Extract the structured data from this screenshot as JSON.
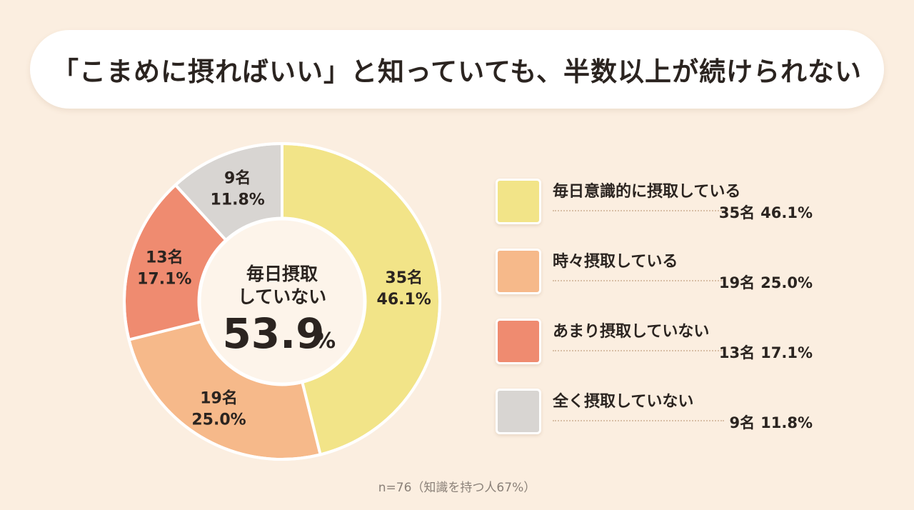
{
  "title": "「こまめに摂ればいい」と知っていても、半数以上が続けられない",
  "center": {
    "line1": "毎日摂取",
    "line2": "していない",
    "value": "53.9",
    "unit": "%"
  },
  "footnote": "n=76（知識を持つ人67%）",
  "chart_data": {
    "type": "pie",
    "donut": true,
    "categories": [
      "毎日意識的に摂取している",
      "時々摂取している",
      "あまり摂取していない",
      "全く摂取していない"
    ],
    "counts": [
      35,
      19,
      13,
      9
    ],
    "values": [
      46.1,
      25.0,
      17.1,
      11.8
    ],
    "count_labels": [
      "35名",
      "19名",
      "13名",
      "9名"
    ],
    "percent_labels": [
      "46.1%",
      "25.0%",
      "17.1%",
      "11.8%"
    ],
    "colors": [
      "#f2e488",
      "#f6b98a",
      "#ef8b70",
      "#d8d5d2"
    ],
    "legend_position": "right"
  },
  "legend": [
    {
      "label": "毎日意識的に摂取している",
      "count": "35名",
      "percent": "46.1%"
    },
    {
      "label": "時々摂取している",
      "count": "19名",
      "percent": "25.0%"
    },
    {
      "label": "あまり摂取していない",
      "count": "13名",
      "percent": "17.1%"
    },
    {
      "label": "全く摂取していない",
      "count": "9名",
      "percent": "11.8%"
    }
  ]
}
